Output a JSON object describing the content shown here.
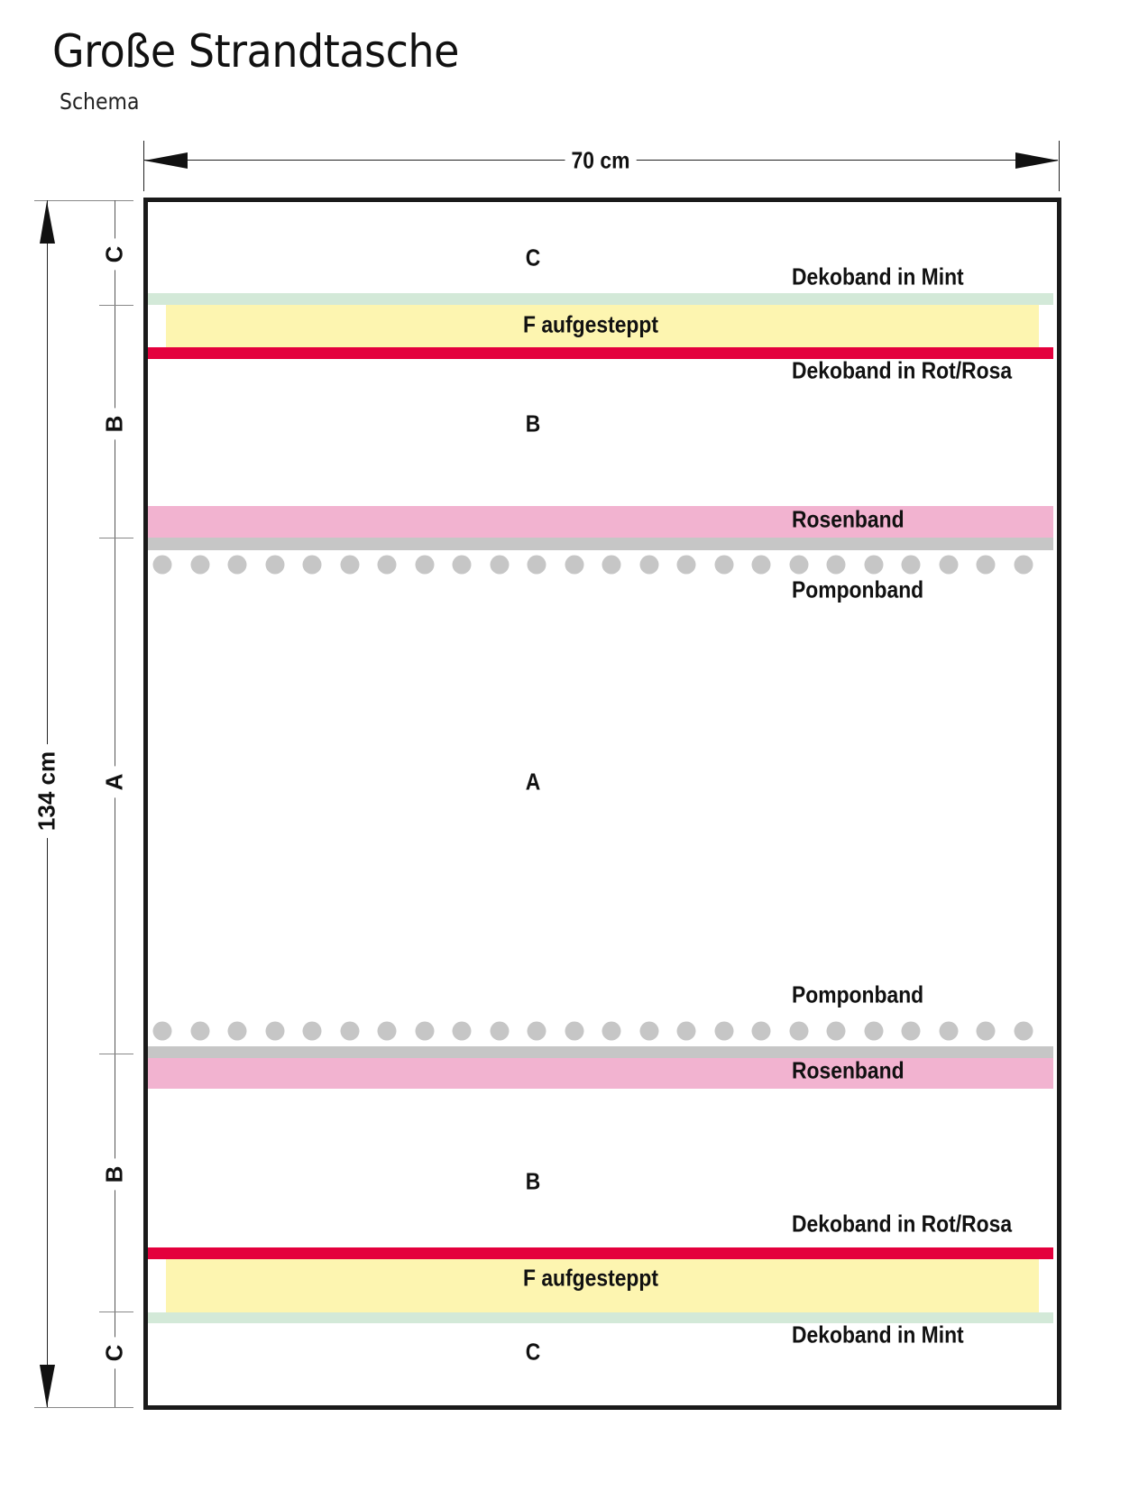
{
  "header": {
    "title": "Große Strandtasche",
    "subtitle": "Schema"
  },
  "dimensions": {
    "width_label": "70 cm",
    "height_label": "134 cm"
  },
  "side_sections": [
    "C",
    "B",
    "A",
    "B",
    "C"
  ],
  "pieces": {
    "c_top": "C",
    "b_top": "B",
    "a": "A",
    "b_bottom": "B",
    "c_bottom": "C"
  },
  "labels": {
    "mint_top": "Dekoband in Mint",
    "f_top": "F aufgesteppt",
    "rot_top": "Dekoband in Rot/Rosa",
    "rosen_top": "Rosenband",
    "pompon_top": "Pomponband",
    "pompon_bottom": "Pomponband",
    "rosen_bottom": "Rosenband",
    "rot_bottom": "Dekoband in Rot/Rosa",
    "f_bottom": "F aufgesteppt",
    "mint_bottom": "Dekoband in Mint"
  },
  "colors": {
    "mint": "#d3e9d8",
    "yellow": "#fdf5b0",
    "red": "#e4003d",
    "rose": "#f2b3d0",
    "gray": "#c6c6c6"
  },
  "pompon_count": 24
}
